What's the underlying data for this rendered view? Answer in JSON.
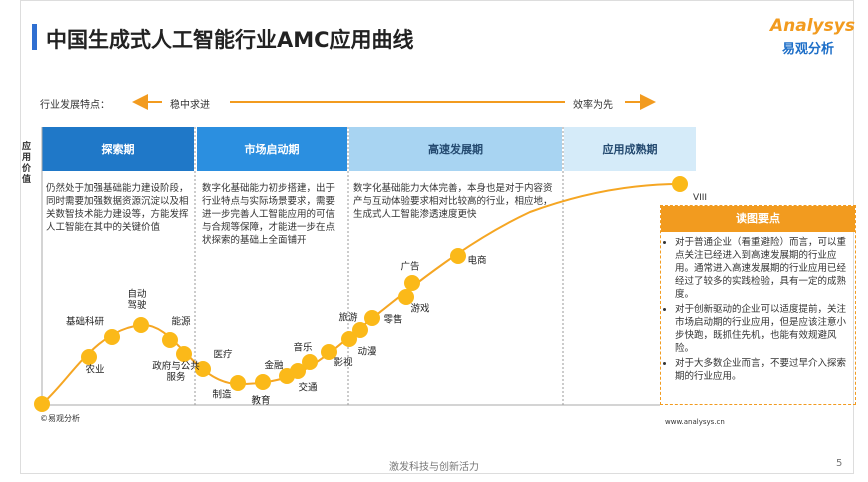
{
  "header": {
    "title": "中国生成式人工智能行业AMC应用曲线",
    "logo_top": "Analysys",
    "logo_bottom": "易观分析"
  },
  "trend": {
    "label": "行业发展特点：",
    "left": "稳中求进",
    "right": "效率为先"
  },
  "y_axis_label": "应用价值",
  "stages": [
    {
      "name": "探索期",
      "description": "仍然处于加强基础能力建设阶段，同时需要加强数据资源沉淀以及相关数智技术能力建设等，方能发挥人工智能在其中的关键价值"
    },
    {
      "name": "市场启动期",
      "description": "数字化基础能力初步搭建，出于行业特点与实际场景要求，需要进一步完善人工智能应用的可信与合规等保障，才能进一步在点状探索的基础上全面铺开"
    },
    {
      "name": "高速发展期",
      "description": "数字化基础能力大体完善，本身也是对于内容资产与互动体验要求相对比较高的行业，相应地，生成式人工智能渗透速度更快"
    },
    {
      "name": "应用成熟期"
    }
  ],
  "nodes": [
    {
      "label": "农业"
    },
    {
      "label": "基础科研"
    },
    {
      "label": "自动驾驶"
    },
    {
      "label": "能源"
    },
    {
      "label": "政府与公共服务"
    },
    {
      "label": "医疗"
    },
    {
      "label": "制造"
    },
    {
      "label": "教育"
    },
    {
      "label": "金融"
    },
    {
      "label": "音乐"
    },
    {
      "label": "交通"
    },
    {
      "label": "影视"
    },
    {
      "label": "旅游"
    },
    {
      "label": "动漫"
    },
    {
      "label": "零售"
    },
    {
      "label": "游戏"
    },
    {
      "label": "广告"
    },
    {
      "label": "电商"
    }
  ],
  "end_marker": "VIII",
  "key_points": {
    "title": "读图要点",
    "items": [
      "对于普通企业（看重避险）而言，可以重点关注已经进入到高速发展期的行业应用。通常进入高速发展期的行业应用已经经过了较多的实践检验，具有一定的成熟度。",
      "对于创新驱动的企业可以适度提前，关注市场启动期的行业应用，但是应该注意小步快跑，既抓住先机，也能有效规避风险。",
      "对于大多数企业而言，不要过早介入探索期的行业应用。"
    ]
  },
  "footer": {
    "source": "©易观分析",
    "url": "www.analysys.cn",
    "slogan": "激发科技与创新活力",
    "page": "5"
  }
}
